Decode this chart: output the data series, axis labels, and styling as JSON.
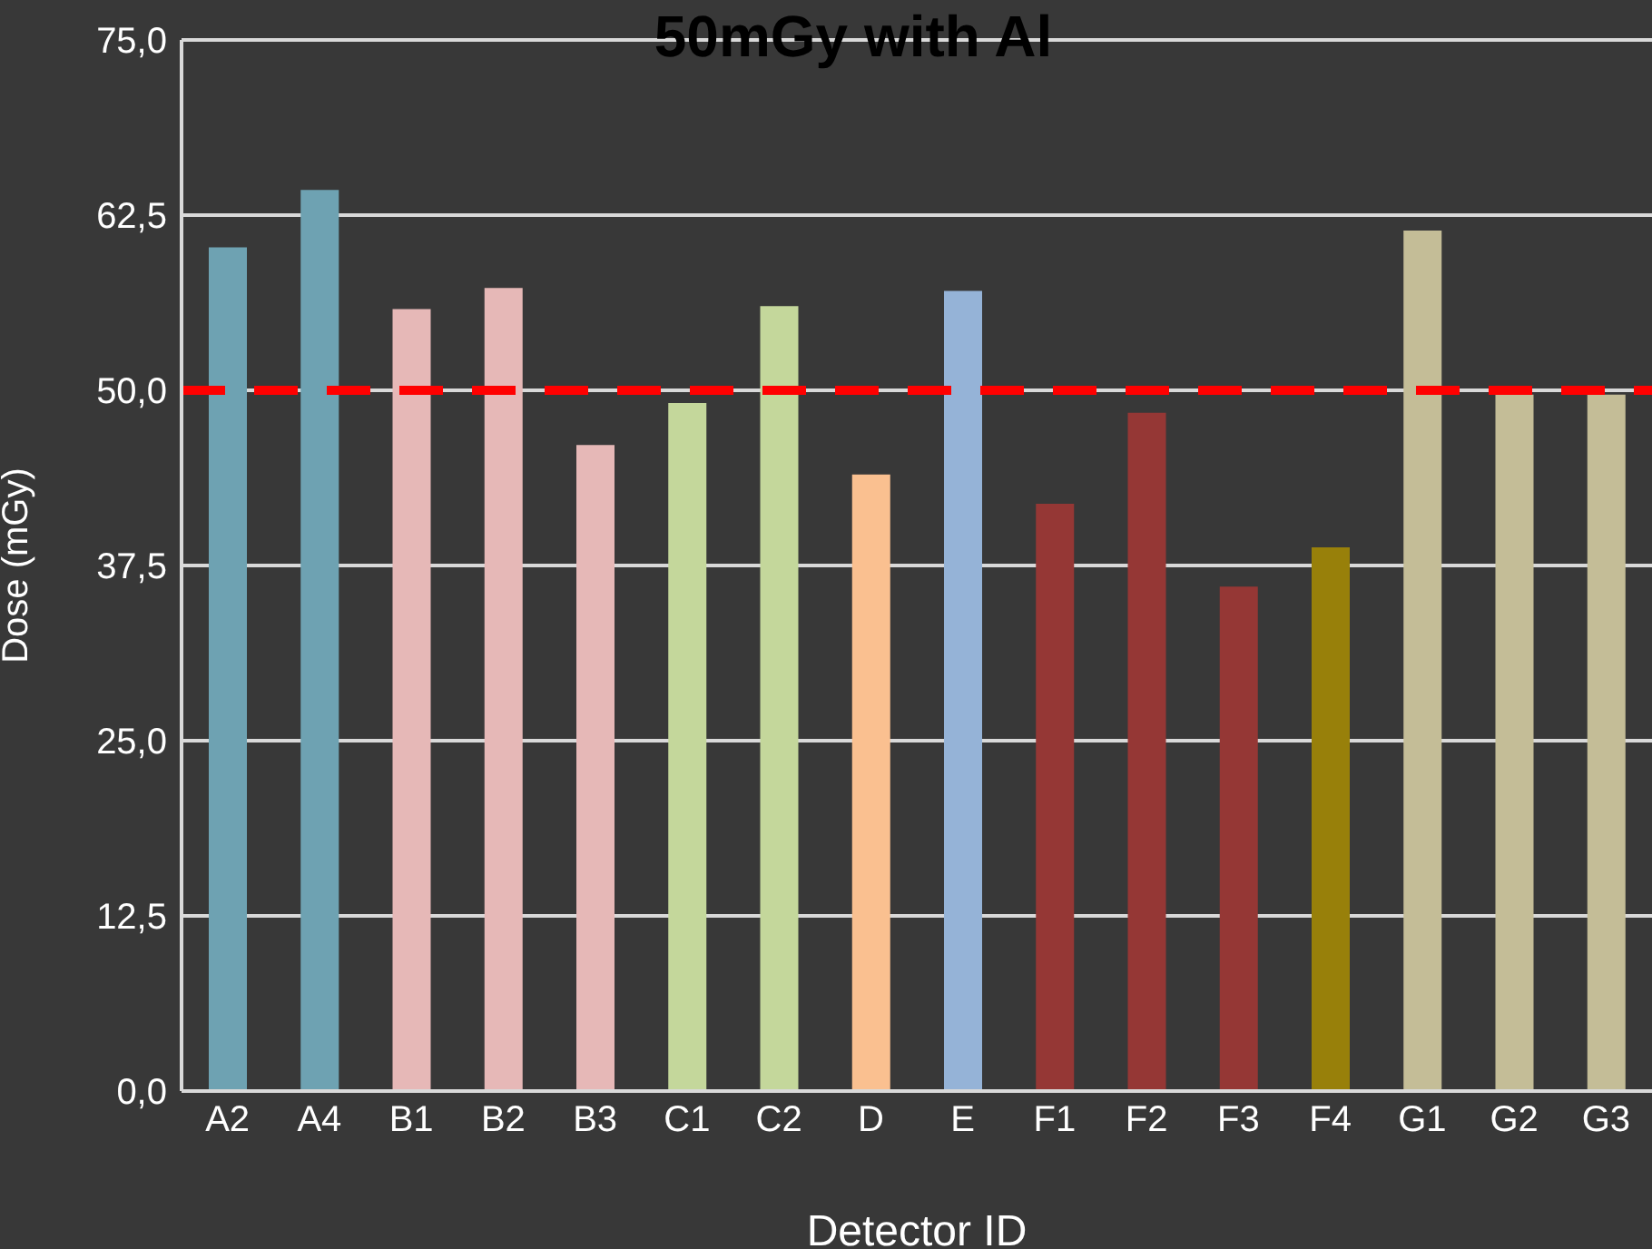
{
  "chart_data": {
    "type": "bar",
    "title": "50mGy with Al",
    "xlabel": "Detector ID",
    "ylabel": "Dose (mGy)",
    "categories": [
      "A2",
      "A4",
      "B1",
      "B2",
      "B3",
      "C1",
      "C2",
      "D",
      "E",
      "F1",
      "F2",
      "F3",
      "F4",
      "G1",
      "G2",
      "G3"
    ],
    "values": [
      60.2,
      64.3,
      55.8,
      57.3,
      46.1,
      49.1,
      56.0,
      44.0,
      57.1,
      41.9,
      48.4,
      36.0,
      38.8,
      61.4,
      49.7,
      49.7
    ],
    "colors": [
      "#6ea2b2",
      "#6ea2b2",
      "#e6b8b7",
      "#e6b8b7",
      "#e6b8b7",
      "#c4d79b",
      "#c4d79b",
      "#fac090",
      "#95b3d7",
      "#953735",
      "#953735",
      "#953735",
      "#98800a",
      "#c4bd97",
      "#c4bd97",
      "#c4bd97"
    ],
    "ylim": [
      0,
      75
    ],
    "yticks": [
      {
        "value": 0,
        "label": "0,0"
      },
      {
        "value": 12.5,
        "label": "12,5"
      },
      {
        "value": 25,
        "label": "25,0"
      },
      {
        "value": 37.5,
        "label": "37,5"
      },
      {
        "value": 50,
        "label": "50,0"
      },
      {
        "value": 62.5,
        "label": "62,5"
      },
      {
        "value": 75,
        "label": "75,0"
      }
    ],
    "grid": "y",
    "ref_lines": [
      {
        "axis": "y",
        "value": 50,
        "color": "#ff0000",
        "line_style": "dashed"
      }
    ]
  }
}
